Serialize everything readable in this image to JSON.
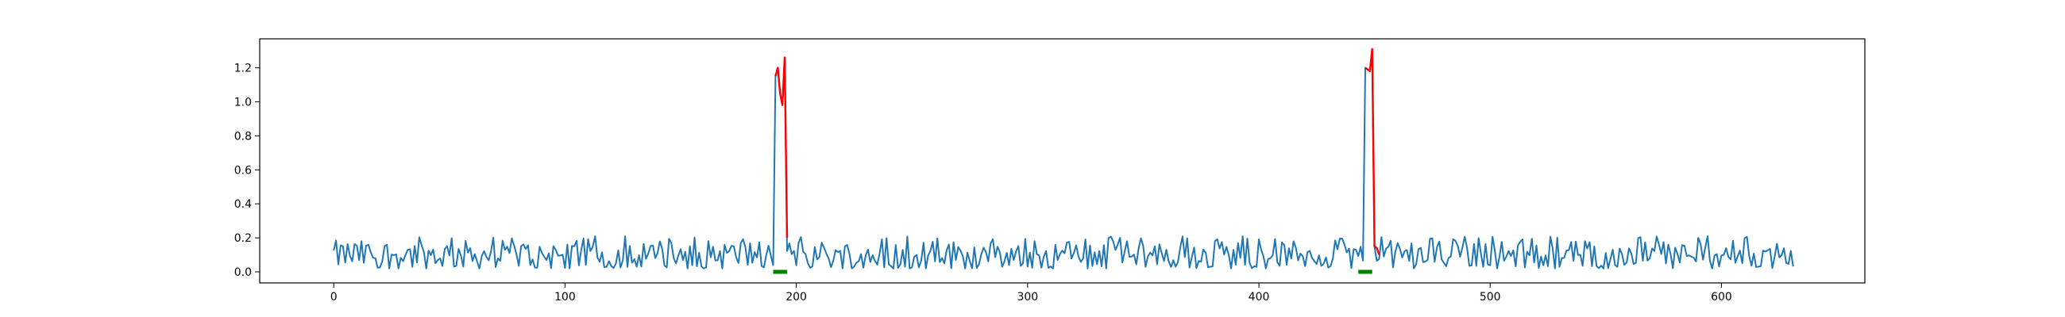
{
  "chart_data": {
    "type": "line",
    "title": "",
    "xlabel": "",
    "ylabel": "",
    "xlim": [
      -32,
      662
    ],
    "ylim": [
      -0.065,
      1.37
    ],
    "x_ticks": [
      0,
      100,
      200,
      300,
      400,
      500,
      600
    ],
    "y_ticks": [
      0.0,
      0.2,
      0.4,
      0.6,
      0.8,
      1.0,
      1.2
    ],
    "x_tick_labels": [
      "0",
      "100",
      "200",
      "300",
      "400",
      "500",
      "600"
    ],
    "y_tick_labels": [
      "0.0",
      "0.2",
      "0.4",
      "0.6",
      "0.8",
      "1.0",
      "1.2"
    ],
    "grid": false,
    "legend": "none",
    "series": [
      {
        "role": "signal",
        "color": "#1f77b4",
        "length": 632,
        "base_level": 0.1,
        "noise_range": [
          0.02,
          0.21
        ],
        "spikes": [
          {
            "x": [
              191,
              192,
              193,
              194,
              195
            ],
            "y": [
              1.15,
              1.2,
              1.05,
              0.98,
              1.26
            ]
          },
          {
            "x": [
              446,
              447,
              448,
              449,
              450
            ],
            "y": [
              1.2,
              1.19,
              1.18,
              1.31,
              0.15
            ]
          }
        ]
      },
      {
        "role": "highlighted",
        "color": "#ff0000",
        "segments": [
          {
            "x": [
              191,
              192,
              193,
              194,
              195,
              196
            ],
            "y": [
              1.15,
              1.2,
              1.05,
              0.98,
              1.26,
              0.2
            ]
          },
          {
            "x": [
              446,
              447,
              448,
              449,
              450,
              451,
              452
            ],
            "y": [
              1.2,
              1.19,
              1.18,
              1.31,
              0.15,
              0.14,
              0.1
            ]
          }
        ]
      },
      {
        "role": "marker",
        "color": "#008000",
        "segments": [
          {
            "x": [
              190,
              196
            ],
            "y": [
              0.0,
              0.0
            ]
          },
          {
            "x": [
              443,
              449
            ],
            "y": [
              0.0,
              0.0
            ]
          }
        ]
      }
    ]
  }
}
